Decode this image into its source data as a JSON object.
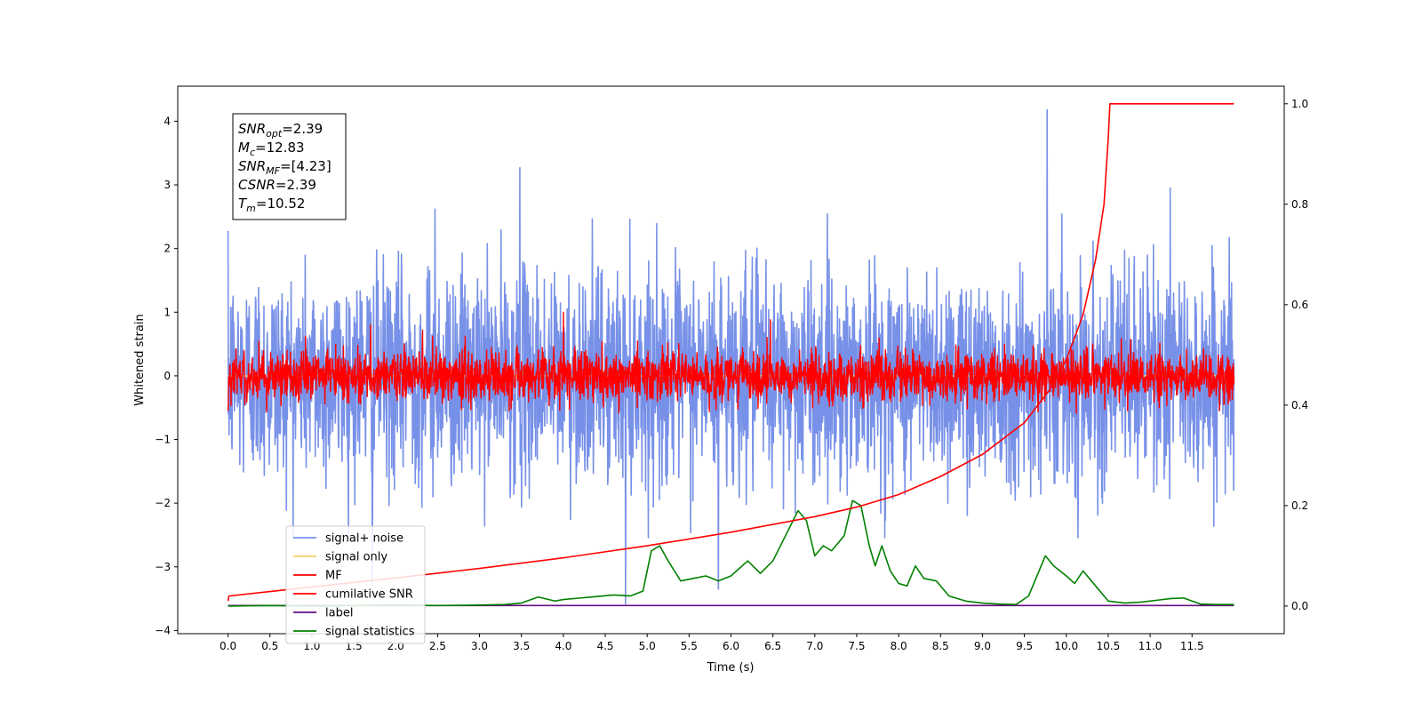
{
  "chart_data": {
    "type": "line",
    "xlabel": "Time (s)",
    "ylabel": "Whitened strain",
    "xlim": [
      -0.6,
      12.6
    ],
    "ylim": [
      -4.05,
      4.55
    ],
    "y2lim": [
      -0.055,
      1.035
    ],
    "x_ticks": [
      0.0,
      0.5,
      1.0,
      1.5,
      2.0,
      2.5,
      3.0,
      3.5,
      4.0,
      4.5,
      5.0,
      5.5,
      6.0,
      6.5,
      7.0,
      7.5,
      8.0,
      8.5,
      9.0,
      9.5,
      10.0,
      10.5,
      11.0,
      11.5
    ],
    "x_tick_labels": [
      "0.0",
      "0.5",
      "1.0",
      "1.5",
      "2.0",
      "2.5",
      "3.0",
      "3.5",
      "4.0",
      "4.5",
      "5.0",
      "5.5",
      "6.0",
      "6.5",
      "7.0",
      "7.5",
      "8.0",
      "8.5",
      "9.0",
      "9.5",
      "10.0",
      "10.5",
      "11.0",
      "11.5"
    ],
    "y_ticks": [
      -4,
      -3,
      -2,
      -1,
      0,
      1,
      2,
      3,
      4
    ],
    "y_tick_labels": [
      "−4",
      "−3",
      "−2",
      "−1",
      "0",
      "1",
      "2",
      "3",
      "4"
    ],
    "y2_ticks": [
      0.0,
      0.2,
      0.4,
      0.6,
      0.8,
      1.0
    ],
    "y2_tick_labels": [
      "0.0",
      "0.2",
      "0.4",
      "0.6",
      "0.8",
      "1.0"
    ],
    "colors": {
      "signal_noise": "#7891e8",
      "signal_only": "#f5cf6b",
      "mf": "#ff0000",
      "csnr": "#ff0000",
      "label": "#6a0d83",
      "stats": "#008000"
    },
    "annotation_box": [
      {
        "sym": "SNR",
        "sub": "opt",
        "val": "=2.39"
      },
      {
        "sym": "M",
        "sub": "c",
        "val": "=12.83"
      },
      {
        "sym": "SNR",
        "sub": "MF",
        "val": "=[4.23]"
      },
      {
        "sym": "CSNR",
        "sub": "",
        "val": "=2.39"
      },
      {
        "sym": "T",
        "sub": "m",
        "val": "=10.52"
      }
    ],
    "legend": [
      "signal+ noise",
      "signal only",
      "MF",
      "cumilative SNR",
      "label",
      "signal statistics"
    ],
    "legend_loc": "lower-left",
    "series": [
      {
        "name": "signal+ noise",
        "axis": "left",
        "kind": "noise",
        "x_range": [
          0.0,
          12.0
        ],
        "std": 0.82,
        "spikes": [
          [
            9.77,
            4.18
          ],
          [
            3.48,
            3.27
          ],
          [
            4.74,
            -3.58
          ],
          [
            1.72,
            -3.25
          ],
          [
            5.85,
            -3.35
          ],
          [
            11.24,
            2.95
          ],
          [
            2.47,
            2.62
          ]
        ]
      },
      {
        "name": "signal only",
        "axis": "left",
        "kind": "flat",
        "x_range": [
          0.0,
          12.0
        ],
        "value": 0.0
      },
      {
        "name": "MF",
        "axis": "left",
        "kind": "noise",
        "x_range": [
          0.0,
          12.0
        ],
        "std": 0.2,
        "spikes": [
          [
            4.0,
            1.0
          ],
          [
            1.7,
            0.8
          ],
          [
            0.0,
            -0.55
          ],
          [
            6.47,
            0.88
          ],
          [
            2.32,
            0.72
          ]
        ]
      },
      {
        "name": "cumilative SNR",
        "axis": "right",
        "x": [
          0.0,
          0.01,
          0.5,
          1.0,
          2.0,
          3.0,
          4.0,
          5.0,
          6.0,
          7.0,
          7.5,
          8.0,
          8.5,
          9.0,
          9.5,
          9.8,
          10.0,
          10.2,
          10.35,
          10.45,
          10.5,
          10.52,
          11.0,
          11.5,
          12.0
        ],
        "y": [
          0.01,
          0.02,
          0.029,
          0.038,
          0.056,
          0.075,
          0.096,
          0.12,
          0.147,
          0.178,
          0.197,
          0.222,
          0.258,
          0.302,
          0.365,
          0.43,
          0.49,
          0.58,
          0.69,
          0.8,
          0.93,
          1.0,
          1.0,
          1.0,
          1.0
        ]
      },
      {
        "name": "label",
        "axis": "right",
        "x": [
          0.0,
          12.0
        ],
        "y": [
          0.001,
          0.001
        ]
      },
      {
        "name": "signal statistics",
        "axis": "right",
        "x": [
          0.0,
          0.5,
          1.0,
          1.5,
          2.0,
          2.5,
          3.0,
          3.3,
          3.5,
          3.7,
          3.9,
          4.0,
          4.2,
          4.4,
          4.6,
          4.8,
          4.95,
          5.05,
          5.15,
          5.25,
          5.4,
          5.55,
          5.7,
          5.85,
          6.0,
          6.2,
          6.35,
          6.5,
          6.65,
          6.8,
          6.9,
          7.0,
          7.1,
          7.2,
          7.35,
          7.45,
          7.55,
          7.65,
          7.72,
          7.8,
          7.9,
          8.0,
          8.1,
          8.2,
          8.3,
          8.45,
          8.6,
          8.8,
          9.0,
          9.2,
          9.4,
          9.55,
          9.65,
          9.75,
          9.85,
          10.0,
          10.1,
          10.2,
          10.35,
          10.5,
          10.7,
          10.9,
          11.1,
          11.25,
          11.4,
          11.6,
          11.8,
          12.0
        ],
        "y": [
          0.0,
          0.001,
          0.0,
          0.001,
          0.002,
          0.001,
          0.002,
          0.003,
          0.006,
          0.018,
          0.01,
          0.013,
          0.016,
          0.019,
          0.022,
          0.02,
          0.03,
          0.11,
          0.12,
          0.09,
          0.05,
          0.055,
          0.06,
          0.05,
          0.06,
          0.09,
          0.065,
          0.09,
          0.14,
          0.19,
          0.17,
          0.1,
          0.12,
          0.11,
          0.14,
          0.21,
          0.2,
          0.12,
          0.08,
          0.12,
          0.07,
          0.045,
          0.04,
          0.08,
          0.055,
          0.05,
          0.02,
          0.01,
          0.006,
          0.004,
          0.003,
          0.02,
          0.06,
          0.1,
          0.08,
          0.06,
          0.045,
          0.07,
          0.04,
          0.01,
          0.006,
          0.008,
          0.012,
          0.015,
          0.016,
          0.004,
          0.003,
          0.003
        ]
      }
    ]
  }
}
